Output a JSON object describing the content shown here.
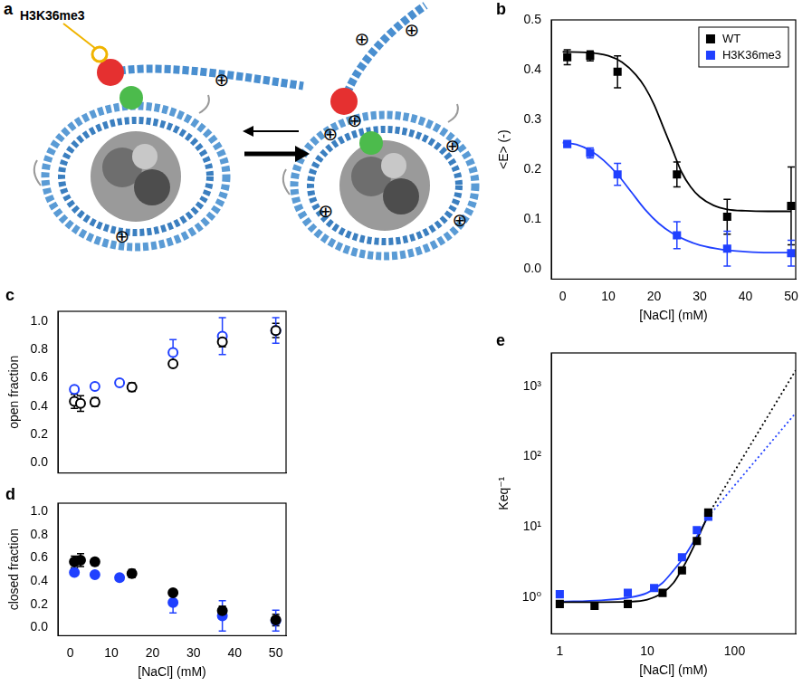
{
  "diagram": {
    "panel": "a",
    "label": "H3K36me3",
    "charge_symbol": "⊕"
  },
  "chart_data": [
    {
      "panel": "b",
      "type": "scatter",
      "x_label": "[NaCl] (mM)",
      "y_label": "<E> (-)",
      "xlim": [
        -2.5,
        51
      ],
      "xticks": [
        0,
        10,
        20,
        30,
        40,
        50
      ],
      "ylim": [
        -0.02,
        0.5
      ],
      "yticks": [
        {
          "value": 0,
          "label": "0.0"
        },
        0.1,
        0.2,
        0.3,
        0.4,
        0.5
      ],
      "grid": false,
      "legend": "upper right",
      "series": [
        {
          "name": "WT",
          "color": "#000000",
          "marker": "square",
          "x": [
            1,
            6,
            12,
            25,
            36,
            50
          ],
          "values": [
            0.425,
            0.428,
            0.396,
            0.19,
            0.105,
            0.127
          ],
          "errors": [
            0.015,
            0.01,
            0.032,
            0.025,
            0.035,
            0.078
          ]
        },
        {
          "name": "H3K36me3",
          "color": "#2040ff",
          "marker": "square",
          "x": [
            1,
            6,
            12,
            25,
            36,
            50
          ],
          "values": [
            0.251,
            0.233,
            0.19,
            0.068,
            0.041,
            0.032
          ],
          "errors": [
            0.004,
            0.01,
            0.022,
            0.027,
            0.035,
            0.026
          ]
        },
        {
          "type": "line",
          "color": "#000000",
          "marker": "none",
          "line_style": "solid",
          "x": [
            0,
            5,
            10,
            13,
            16,
            18,
            20,
            22,
            24,
            26,
            28,
            30,
            33,
            36,
            40,
            45,
            50
          ],
          "values": [
            0.436,
            0.435,
            0.428,
            0.415,
            0.39,
            0.365,
            0.33,
            0.285,
            0.24,
            0.195,
            0.165,
            0.145,
            0.128,
            0.12,
            0.117,
            0.116,
            0.116
          ]
        },
        {
          "type": "line",
          "color": "#2040ff",
          "marker": "none",
          "line_style": "solid",
          "x": [
            0,
            3,
            6,
            9,
            12,
            15,
            18,
            21,
            24,
            27,
            30,
            35,
            40,
            45,
            50
          ],
          "values": [
            0.254,
            0.25,
            0.238,
            0.218,
            0.19,
            0.155,
            0.12,
            0.092,
            0.072,
            0.058,
            0.048,
            0.039,
            0.035,
            0.033,
            0.033
          ]
        }
      ]
    },
    {
      "panel": "c",
      "type": "scatter",
      "y_label": "open fraction",
      "tick_labels": "y",
      "xlim": [
        -3,
        52.5
      ],
      "xticks": [
        0,
        10,
        20,
        30,
        40,
        50
      ],
      "ylim": [
        -0.07,
        1.07
      ],
      "yticks": [
        {
          "value": 0,
          "label": "0.0"
        },
        0.2,
        0.4,
        0.6,
        0.8,
        {
          "value": 1,
          "label": "1.0"
        }
      ],
      "grid": false,
      "series": [
        {
          "color": "#000000",
          "marker": "circle_open",
          "x": [
            1,
            2.5,
            6,
            15,
            25,
            37,
            50
          ],
          "values": [
            0.435,
            0.42,
            0.43,
            0.535,
            0.7,
            0.855,
            0.935
          ],
          "errors": [
            0.05,
            0.055,
            0.03,
            0.03,
            0.015,
            0.035,
            0.05
          ]
        },
        {
          "color": "#2040ff",
          "marker": "circle_open",
          "x": [
            1,
            6,
            12,
            25,
            37,
            50
          ],
          "values": [
            0.52,
            0.54,
            0.565,
            0.78,
            0.895,
            0.935
          ],
          "errors": [
            0.01,
            0.01,
            0.01,
            0.09,
            0.13,
            0.09
          ]
        }
      ]
    },
    {
      "panel": "d",
      "type": "scatter",
      "x_label": "[NaCl] (mM)",
      "y_label": "closed fraction",
      "xlim": [
        -3,
        52.5
      ],
      "xticks": [
        0,
        10,
        20,
        30,
        40,
        50
      ],
      "ylim": [
        -0.07,
        1.07
      ],
      "yticks": [
        {
          "value": 0,
          "label": "0.0"
        },
        0.2,
        0.4,
        0.6,
        0.8,
        {
          "value": 1,
          "label": "1.0"
        }
      ],
      "grid": false,
      "series": [
        {
          "color": "#000000",
          "marker": "circle",
          "x": [
            1,
            2.5,
            6,
            15,
            25,
            37,
            50
          ],
          "values": [
            0.565,
            0.58,
            0.565,
            0.465,
            0.3,
            0.145,
            0.065
          ],
          "errors": [
            0.05,
            0.055,
            0.03,
            0.035,
            0.015,
            0.04,
            0.05
          ]
        },
        {
          "color": "#2040ff",
          "marker": "circle",
          "x": [
            1,
            6,
            12,
            25,
            37,
            50
          ],
          "values": [
            0.475,
            0.455,
            0.43,
            0.215,
            0.1,
            0.06
          ],
          "errors": [
            0.02,
            0.015,
            0.015,
            0.09,
            0.13,
            0.09
          ]
        }
      ]
    },
    {
      "panel": "e",
      "type": "scatter",
      "x_label": "[NaCl] (mM)",
      "y_label": "Keq⁻¹",
      "log": true,
      "xlim": [
        0.8,
        500
      ],
      "xticks": [
        1,
        10,
        100
      ],
      "ylim": [
        0.3,
        3000
      ],
      "yticks": [
        {
          "value": 1,
          "label": "10⁰"
        },
        {
          "value": 10,
          "label": "10¹"
        },
        {
          "value": 100,
          "label": "10²"
        },
        {
          "value": 1000,
          "label": "10³"
        }
      ],
      "grid": false,
      "series": [
        {
          "color": "#000000",
          "marker": "square",
          "x": [
            1,
            2.5,
            6,
            15,
            25,
            37,
            50
          ],
          "values": [
            0.8,
            0.75,
            0.8,
            1.15,
            2.4,
            6.3,
            16
          ]
        },
        {
          "color": "#2040ff",
          "marker": "square",
          "x": [
            1,
            6,
            12,
            25,
            37,
            50
          ],
          "values": [
            1.1,
            1.15,
            1.35,
            3.7,
            9,
            14
          ]
        },
        {
          "type": "line",
          "color": "#000000",
          "marker": "none",
          "line_style": "solid",
          "x": [
            1,
            3,
            6,
            10,
            15,
            20,
            25,
            30,
            40,
            50
          ],
          "values": [
            0.85,
            0.85,
            0.86,
            0.92,
            1.15,
            1.6,
            2.5,
            3.8,
            8,
            15
          ]
        },
        {
          "type": "line",
          "color": "#000000",
          "marker": "none",
          "line_style": "dotted",
          "x": [
            50,
            500
          ],
          "values": [
            15,
            1700
          ]
        },
        {
          "type": "line",
          "color": "#2040ff",
          "marker": "none",
          "line_style": "solid",
          "x": [
            1,
            3,
            6,
            10,
            15,
            20,
            25,
            30,
            40,
            50
          ],
          "values": [
            0.86,
            0.9,
            0.98,
            1.15,
            1.6,
            2.4,
            3.4,
            4.8,
            8.6,
            14
          ]
        },
        {
          "type": "line",
          "color": "#2040ff",
          "marker": "none",
          "line_style": "dotted",
          "x": [
            50,
            500
          ],
          "values": [
            14,
            420
          ]
        }
      ]
    }
  ]
}
